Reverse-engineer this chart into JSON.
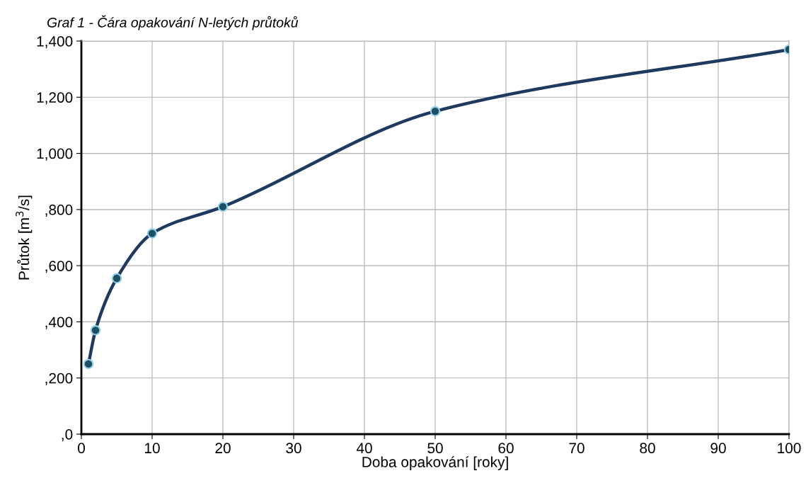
{
  "chart_data": {
    "type": "line",
    "title": "Graf 1 - Čára opakování N-letých průtoků",
    "xlabel": "Doba opakování [roky]",
    "ylabel": "Průtok [m$^{3}$/s]",
    "x": [
      1,
      2,
      5,
      10,
      20,
      50,
      100
    ],
    "series": [
      {
        "color": "#1f3a60",
        "values": [
          250,
          370,
          555,
          715,
          810,
          1150,
          1370
        ]
      }
    ],
    "xlim": [
      0,
      100
    ],
    "xticks": [
      0,
      10,
      20,
      30,
      40,
      50,
      60,
      70,
      80,
      90,
      100
    ],
    "ylim": [
      0,
      1400
    ],
    "yticks": [
      {
        "value": 0,
        "label": ",0"
      },
      {
        "value": 200,
        "label": ",200"
      },
      {
        "value": 400,
        "label": ",400"
      },
      {
        "value": 600,
        "label": ",600"
      },
      {
        "value": 800,
        "label": ",800"
      },
      {
        "value": 1000,
        "label": "1,000"
      },
      {
        "value": 1200,
        "label": "1,200"
      },
      {
        "value": 1400,
        "label": "1,400"
      }
    ],
    "grid": true,
    "marker": "circle",
    "line_style": "solid"
  }
}
